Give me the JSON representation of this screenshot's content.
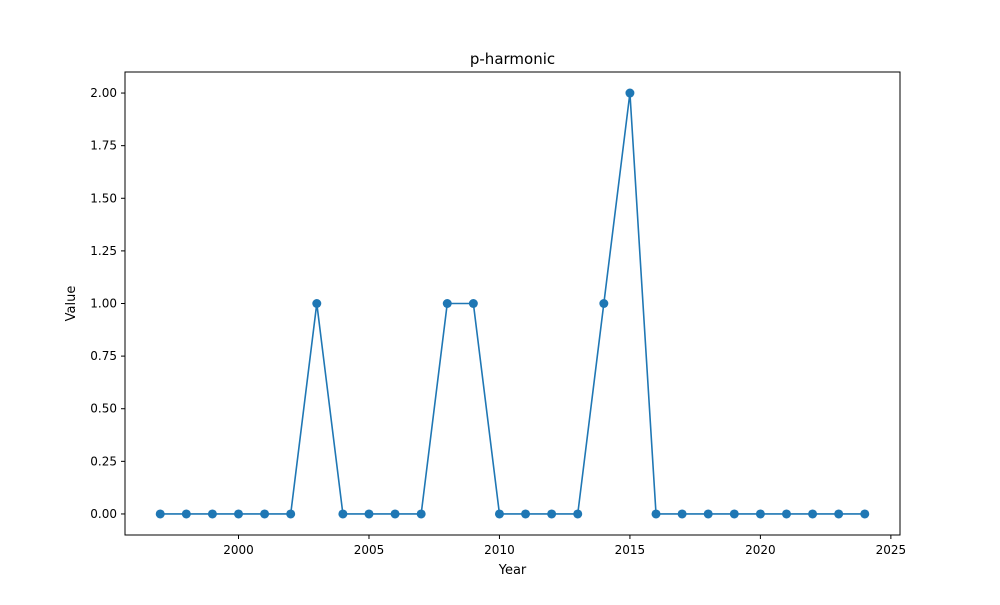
{
  "chart_data": {
    "type": "line",
    "title": "p-harmonic",
    "xlabel": "Year",
    "ylabel": "Value",
    "xlim": [
      1995.65,
      2025.35
    ],
    "ylim": [
      -0.1,
      2.1
    ],
    "x_ticks": [
      2000,
      2005,
      2010,
      2015,
      2020,
      2025
    ],
    "y_ticks": [
      0.0,
      0.25,
      0.5,
      0.75,
      1.0,
      1.25,
      1.5,
      1.75,
      2.0
    ],
    "x_tick_labels": [
      "2000",
      "2005",
      "2010",
      "2015",
      "2020",
      "2025"
    ],
    "y_tick_labels": [
      "0.00",
      "0.25",
      "0.50",
      "0.75",
      "1.00",
      "1.25",
      "1.50",
      "1.75",
      "2.00"
    ],
    "grid": false,
    "series": [
      {
        "color": "#1f77b4",
        "marker": "circle",
        "x": [
          1997,
          1998,
          1999,
          2000,
          2001,
          2002,
          2003,
          2004,
          2005,
          2006,
          2007,
          2008,
          2009,
          2010,
          2011,
          2012,
          2013,
          2014,
          2015,
          2016,
          2017,
          2018,
          2019,
          2020,
          2021,
          2022,
          2023,
          2024
        ],
        "y": [
          0,
          0,
          0,
          0,
          0,
          0,
          1,
          0,
          0,
          0,
          0,
          1,
          1,
          0,
          0,
          0,
          0,
          1,
          2,
          0,
          0,
          0,
          0,
          0,
          0,
          0,
          0,
          0
        ]
      }
    ]
  }
}
